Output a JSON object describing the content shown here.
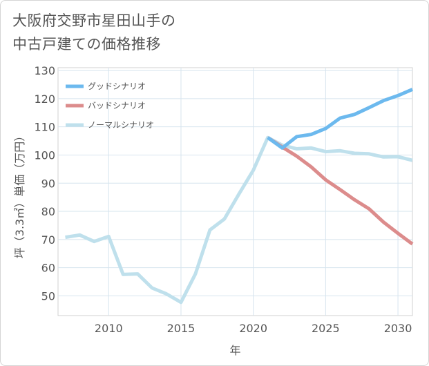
{
  "title_lines": [
    "大阪府交野市星田山手の",
    "中古戸建ての価格推移"
  ],
  "chart_data": {
    "type": "line",
    "xlabel": "年",
    "ylabel": "坪（3.3㎡）単価（万円）",
    "xlim": [
      2006.5,
      2031
    ],
    "ylim": [
      43,
      131
    ],
    "x_ticks": [
      2010,
      2015,
      2020,
      2025,
      2030
    ],
    "y_ticks": [
      50,
      60,
      70,
      80,
      90,
      100,
      110,
      120,
      130
    ],
    "grid": true,
    "legend_position": "top-left",
    "series": [
      {
        "name": "グッドシナリオ",
        "color": "#6cb9ee",
        "x": [
          2021,
          2022,
          2023,
          2024,
          2025,
          2026,
          2027,
          2028,
          2029,
          2030,
          2031
        ],
        "y": [
          106.2,
          102.5,
          106.5,
          107.3,
          109.4,
          113.1,
          114.4,
          116.8,
          119.3,
          121.1,
          123.3
        ]
      },
      {
        "name": "バッドシナリオ",
        "color": "#dc8c8c",
        "x": [
          2021,
          2022,
          2023,
          2024,
          2025,
          2026,
          2027,
          2028,
          2029,
          2030,
          2031
        ],
        "y": [
          106.2,
          102.8,
          99.6,
          95.8,
          91.2,
          87.7,
          84.1,
          80.9,
          76.2,
          72.2,
          68.4
        ]
      },
      {
        "name": "ノーマルシナリオ",
        "color": "#bfe0ec",
        "x": [
          2007,
          2008,
          2009,
          2010,
          2011,
          2012,
          2013,
          2014,
          2015,
          2016,
          2017,
          2018,
          2019,
          2020,
          2021,
          2022,
          2023,
          2024,
          2025,
          2026,
          2027,
          2028,
          2029,
          2030,
          2031
        ],
        "y": [
          70.8,
          71.6,
          69.3,
          71.1,
          57.6,
          57.8,
          52.8,
          50.7,
          47.7,
          57.8,
          73.4,
          77.3,
          86.1,
          94.6,
          106.2,
          103.5,
          102.2,
          102.5,
          101.2,
          101.5,
          100.6,
          100.4,
          99.3,
          99.4,
          98.1
        ]
      }
    ]
  }
}
